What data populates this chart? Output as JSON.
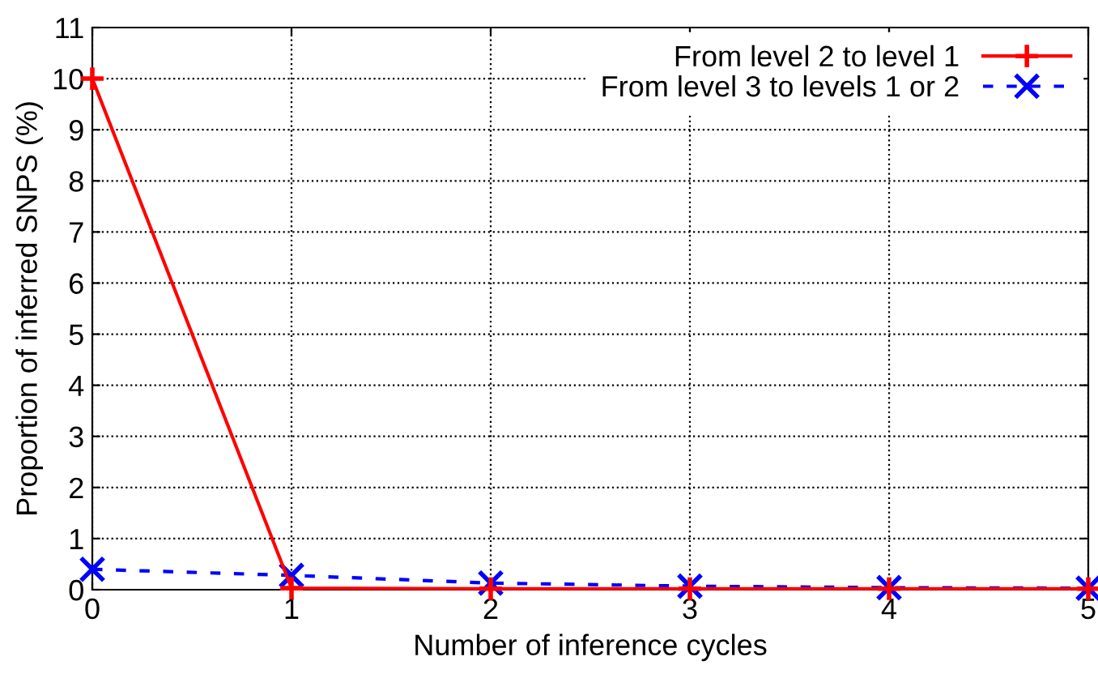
{
  "chart_data": {
    "type": "line",
    "xlabel": "Number of inference cycles",
    "ylabel": "Proportion of inferred SNPS (%)",
    "x": [
      0,
      1,
      2,
      3,
      4,
      5
    ],
    "series": [
      {
        "name": "From level 2 to level 1",
        "color": "#ff0000",
        "values": [
          10,
          0.03,
          0.02,
          0.02,
          0.02,
          0.02
        ],
        "marker": "plus",
        "line_style": "solid"
      },
      {
        "name": "From level 3 to levels 1 or 2",
        "color": "#0000ff",
        "values": [
          0.4,
          0.28,
          0.13,
          0.07,
          0.04,
          0.03
        ],
        "marker": "cross",
        "line_style": "dashed"
      }
    ],
    "xlim": [
      0,
      5
    ],
    "xticks": [
      0,
      1,
      2,
      3,
      4,
      5
    ],
    "ylim": [
      0,
      11
    ],
    "yticks": [
      0,
      1,
      2,
      3,
      4,
      5,
      6,
      7,
      8,
      9,
      10,
      11
    ],
    "grid": true,
    "legend": "top right"
  }
}
